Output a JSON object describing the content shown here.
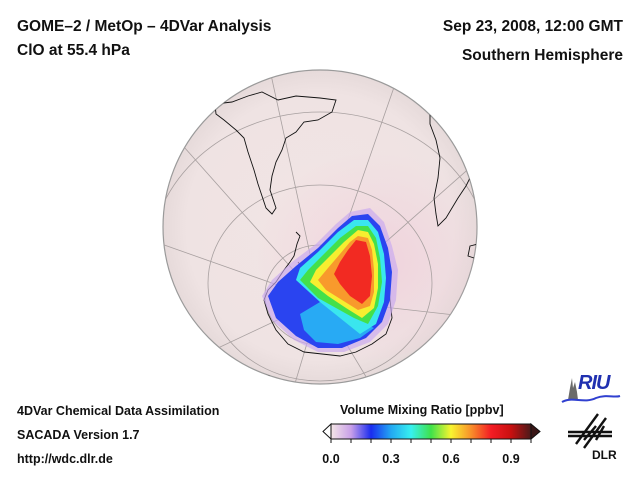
{
  "header": {
    "title": "GOME–2 / MetOp – 4DVar Analysis",
    "subtitle": "ClO at 55.4 hPa",
    "date": "Sep 23, 2008, 12:00 GMT",
    "hemisphere": "Southern Hemisphere"
  },
  "footer": {
    "line1": "4DVar Chemical Data Assimilation",
    "line2": "SACADA Version 1.7",
    "line3": "http://wdc.dlr.de"
  },
  "colorbar": {
    "title": "Volume Mixing Ratio [ppbv]",
    "min": 0.0,
    "max": 1.0,
    "ticks": [
      "0.0",
      "0.3",
      "0.6",
      "0.9"
    ],
    "tick_values": [
      0.0,
      0.3,
      0.6,
      0.9
    ],
    "colors": [
      "#f4e6e6",
      "#c9a0e8",
      "#1a2cf0",
      "#23a8f2",
      "#37f0f0",
      "#3fe24a",
      "#f8f430",
      "#f8902a",
      "#f41c24",
      "#c81010",
      "#4a1a1a"
    ]
  },
  "logos": {
    "riu": "RIU",
    "dlr": "DLR"
  },
  "map": {
    "projection": "orthographic",
    "ocean_color": "#efe4e4",
    "land_outline": "#111111"
  }
}
